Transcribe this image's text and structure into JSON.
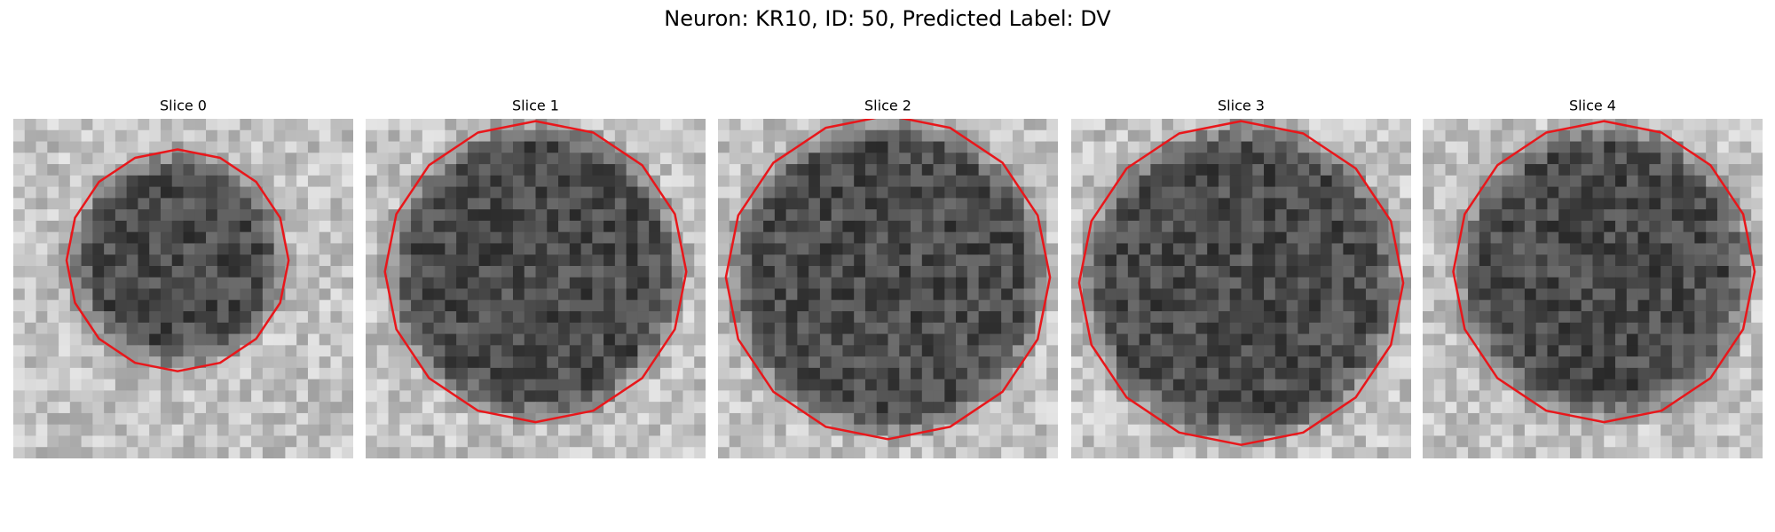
{
  "title": "Neuron: KR10, ID: 50, Predicted Label: DV",
  "panels": [
    {
      "title": "Slice 0"
    },
    {
      "title": "Slice 1"
    },
    {
      "title": "Slice 2"
    },
    {
      "title": "Slice 3"
    },
    {
      "title": "Slice 4"
    }
  ]
}
